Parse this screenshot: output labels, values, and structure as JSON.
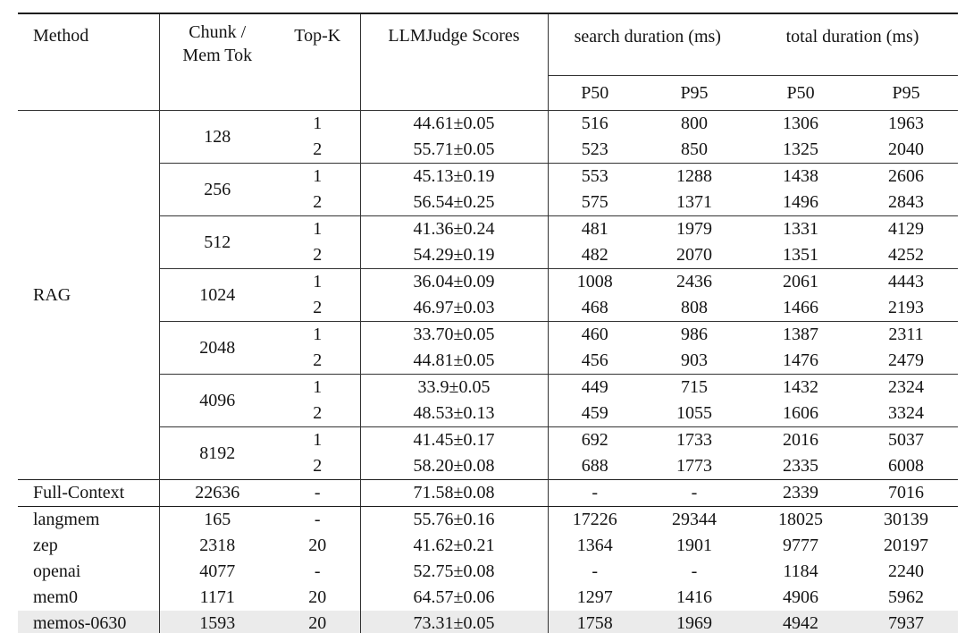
{
  "table": {
    "header": {
      "method": "Method",
      "chunk_line1": "Chunk /",
      "chunk_line2": "Mem Tok",
      "top_k": "Top-K",
      "llm_judge": "LLMJudge Scores",
      "search_duration": "search duration (ms)",
      "total_duration": "total duration (ms)",
      "search_p50": "P50",
      "search_p95": "P95",
      "total_p50": "P50",
      "total_p95": "P95"
    },
    "rag_block": {
      "method": "RAG",
      "groups": [
        {
          "chunk": "128",
          "rows": [
            [
              "1",
              "44.61±0.05",
              "516",
              "800",
              "1306",
              "1963"
            ],
            [
              "2",
              "55.71±0.05",
              "523",
              "850",
              "1325",
              "2040"
            ]
          ]
        },
        {
          "chunk": "256",
          "rows": [
            [
              "1",
              "45.13±0.19",
              "553",
              "1288",
              "1438",
              "2606"
            ],
            [
              "2",
              "56.54±0.25",
              "575",
              "1371",
              "1496",
              "2843"
            ]
          ]
        },
        {
          "chunk": "512",
          "rows": [
            [
              "1",
              "41.36±0.24",
              "481",
              "1979",
              "1331",
              "4129"
            ],
            [
              "2",
              "54.29±0.19",
              "482",
              "2070",
              "1351",
              "4252"
            ]
          ]
        },
        {
          "chunk": "1024",
          "rows": [
            [
              "1",
              "36.04±0.09",
              "1008",
              "2436",
              "2061",
              "4443"
            ],
            [
              "2",
              "46.97±0.03",
              "468",
              "808",
              "1466",
              "2193"
            ]
          ]
        },
        {
          "chunk": "2048",
          "rows": [
            [
              "1",
              "33.70±0.05",
              "460",
              "986",
              "1387",
              "2311"
            ],
            [
              "2",
              "44.81±0.05",
              "456",
              "903",
              "1476",
              "2479"
            ]
          ]
        },
        {
          "chunk": "4096",
          "rows": [
            [
              "1",
              "33.9±0.05",
              "449",
              "715",
              "1432",
              "2324"
            ],
            [
              "2",
              "48.53±0.13",
              "459",
              "1055",
              "1606",
              "3324"
            ]
          ]
        },
        {
          "chunk": "8192",
          "rows": [
            [
              "1",
              "41.45±0.17",
              "692",
              "1733",
              "2016",
              "5037"
            ],
            [
              "2",
              "58.20±0.08",
              "688",
              "1773",
              "2335",
              "6008"
            ]
          ]
        }
      ]
    },
    "full_context_row": {
      "method": "Full-Context",
      "chunk": "22636",
      "top_k": "-",
      "score": "71.58±0.08",
      "search_p50": "-",
      "search_p95": "-",
      "total_p50": "2339",
      "total_p95": "7016"
    },
    "baseline_rows": [
      {
        "method": "langmem",
        "chunk": "165",
        "top_k": "-",
        "score": "55.76±0.16",
        "search_p50": "17226",
        "search_p95": "29344",
        "total_p50": "18025",
        "total_p95": "30139"
      },
      {
        "method": "zep",
        "chunk": "2318",
        "top_k": "20",
        "score": "41.62±0.21",
        "search_p50": "1364",
        "search_p95": "1901",
        "total_p50": "9777",
        "total_p95": "20197"
      },
      {
        "method": "openai",
        "chunk": "4077",
        "top_k": "-",
        "score": "52.75±0.08",
        "search_p50": "-",
        "search_p95": "-",
        "total_p50": "1184",
        "total_p95": "2240"
      },
      {
        "method": "mem0",
        "chunk": "1171",
        "top_k": "20",
        "score": "64.57±0.06",
        "search_p50": "1297",
        "search_p95": "1416",
        "total_p50": "4906",
        "total_p95": "5962"
      },
      {
        "method": "memos-0630",
        "chunk": "1593",
        "top_k": "20",
        "score": "73.31±0.05",
        "search_p50": "1758",
        "search_p95": "1969",
        "total_p50": "4942",
        "total_p95": "7937"
      }
    ]
  },
  "colors": {
    "highlight": "#ebebeb",
    "rule": "#333333",
    "rule_heavy": "#1d1d1d",
    "text": "#141414",
    "background": "#ffffff"
  }
}
